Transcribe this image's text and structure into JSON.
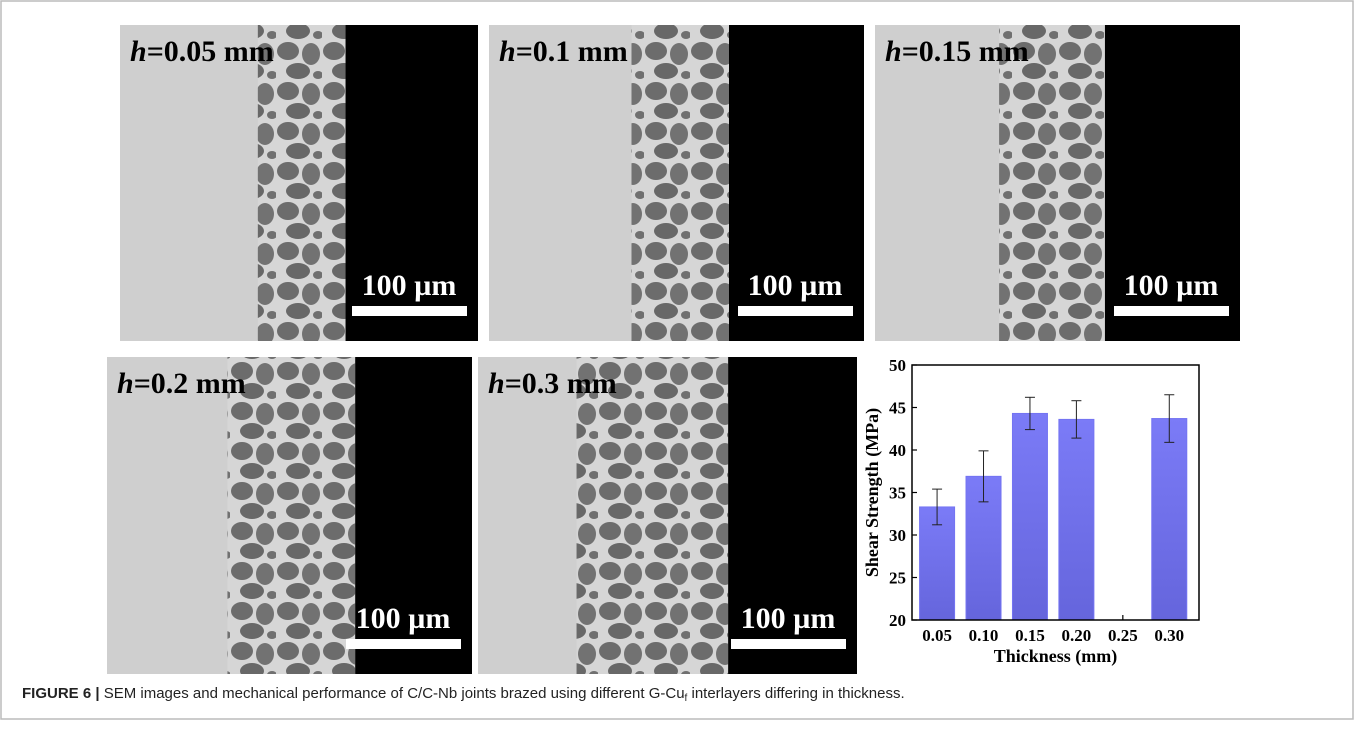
{
  "panels": [
    {
      "variable": "h",
      "label": "=0.05 mm",
      "scale_bar": "100 µm"
    },
    {
      "variable": "h",
      "label": "=0.1 mm",
      "scale_bar": "100 µm"
    },
    {
      "variable": "h",
      "label": "=0.15 mm",
      "scale_bar": "100 µm"
    },
    {
      "variable": "h",
      "label": "=0.2 mm",
      "scale_bar": "100 µm"
    },
    {
      "variable": "h",
      "label": "=0.3 mm",
      "scale_bar": "100 µm"
    }
  ],
  "chart_data": {
    "type": "bar",
    "x_label": "Thickness (mm)",
    "y_label": "Shear Strength (MPa)",
    "x": [
      0.05,
      0.1,
      0.15,
      0.2,
      0.3
    ],
    "values": [
      33.3,
      36.9,
      44.3,
      43.6,
      43.7
    ],
    "errors": [
      2.1,
      3.0,
      1.9,
      2.2,
      2.8
    ],
    "color": "#7474f2",
    "xlim": [
      0.023,
      0.332
    ],
    "xticks": [
      {
        "value": 0.05,
        "label": "0.05"
      },
      {
        "value": 0.1,
        "label": "0.10"
      },
      {
        "value": 0.15,
        "label": "0.15"
      },
      {
        "value": 0.2,
        "label": "0.20"
      },
      {
        "value": 0.25,
        "label": "0.25"
      },
      {
        "value": 0.3,
        "label": "0.30"
      }
    ],
    "ylim": [
      20,
      50
    ],
    "yticks": [
      20,
      25,
      30,
      35,
      40,
      45,
      50
    ]
  },
  "caption": {
    "figure_label": "FIGURE 6 |",
    "text": " SEM images and mechanical performance of C/C-Nb joints brazed using different G-Cu",
    "subscript": "f",
    "text_end": " interlayers differing in thickness."
  }
}
